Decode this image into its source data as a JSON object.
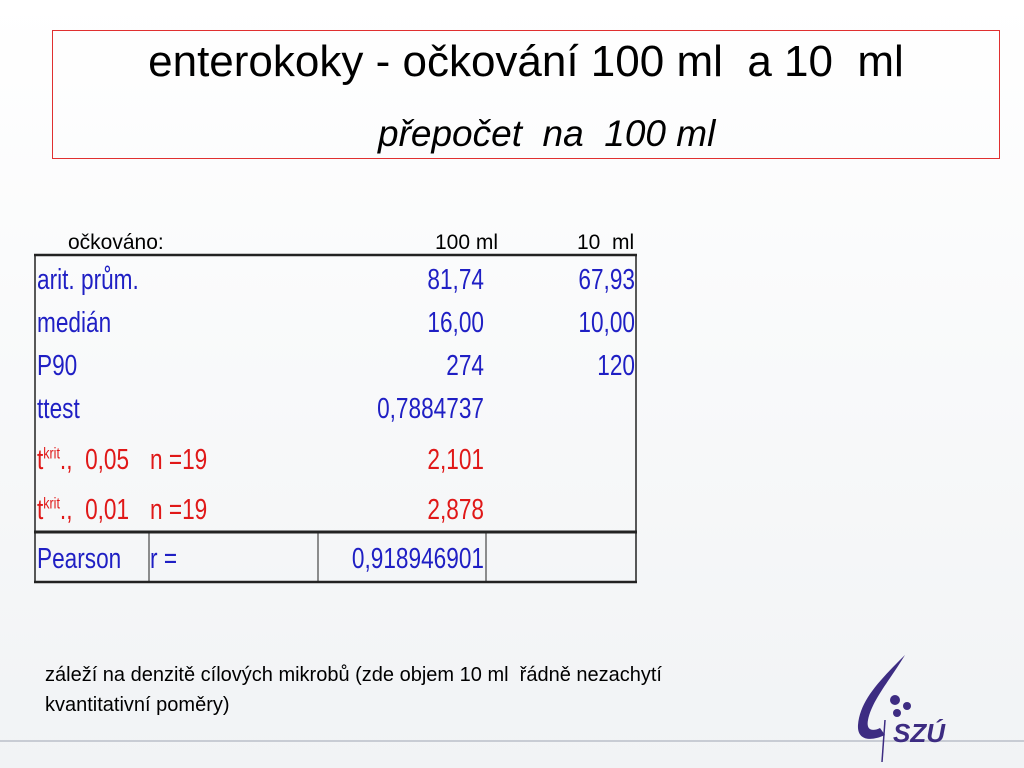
{
  "title": "enterokoky - očkování 100 ml  a 10  ml",
  "subtitle": "přepočet  na  100 ml",
  "table": {
    "header": {
      "label": "očkováno:",
      "cols": [
        "100 ml",
        "10  ml"
      ]
    },
    "rows": [
      {
        "label": "arit. prům.",
        "values": [
          "81,74",
          "67,93"
        ]
      },
      {
        "label": "medián",
        "values": [
          "16,00",
          "10,00"
        ]
      },
      {
        "label": "P90",
        "values": [
          "274",
          "120"
        ]
      },
      {
        "label": "ttest",
        "values": [
          "0,7884737"
        ]
      }
    ],
    "critical": [
      {
        "symbol": "t",
        "superscript": "krit",
        "level": ".,  0,05",
        "n": "n =19",
        "value": "2,101"
      },
      {
        "symbol": "t",
        "superscript": "krit",
        "level": ".,  0,01",
        "n": "n =19",
        "value": "2,878"
      }
    ],
    "pearson": {
      "label": "Pearson",
      "stat": "r =",
      "value": "0,918946901"
    }
  },
  "note": "záleží na denzitě cílových mikrobů (zde objem 10 ml  řádně nezachytí kvantitativní poměry)",
  "logo": "SZÚ"
}
